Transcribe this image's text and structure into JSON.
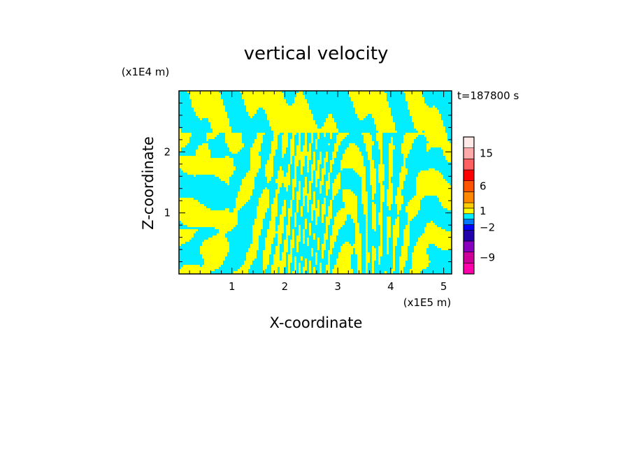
{
  "chart_data": {
    "type": "heatmap",
    "title": "vertical velocity",
    "xlabel": "X-coordinate",
    "ylabel": "Z-coordinate",
    "x_scale_label": "(x1E5 m)",
    "y_scale_label": "(x1E4 m)",
    "time_label": "t=187800 s",
    "xlim": [
      0,
      5.15
    ],
    "ylim": [
      0,
      3.0
    ],
    "x_ticks": [
      "1",
      "2",
      "3",
      "4",
      "5"
    ],
    "y_ticks": [
      "1",
      "2"
    ],
    "x_tick_values": [
      1,
      2,
      3,
      4,
      5
    ],
    "y_tick_values": [
      1,
      2
    ],
    "dominant_field_colors": {
      "negative": "#00eeff",
      "positive": "#ffff00"
    },
    "colorbar": {
      "labels": [
        "15",
        "6",
        "1",
        "−2",
        "−9"
      ],
      "label_values": [
        15,
        6,
        1,
        -2,
        -9
      ],
      "colors_bottom_to_top": [
        "#ff00aa",
        "#cc0099",
        "#8800bb",
        "#2200aa",
        "#0000ff",
        "#0077ff",
        "#00eeff",
        "#ffff00",
        "#ffcc00",
        "#ff8800",
        "#ff5500",
        "#ff0000",
        "#ff6060",
        "#ffaaaa",
        "#ffe8e8"
      ],
      "level_values_bottom_to_top": [
        -12,
        -9,
        -6,
        -4,
        -2,
        -1,
        0,
        1,
        2,
        4,
        6,
        9,
        12,
        15,
        20
      ]
    }
  }
}
